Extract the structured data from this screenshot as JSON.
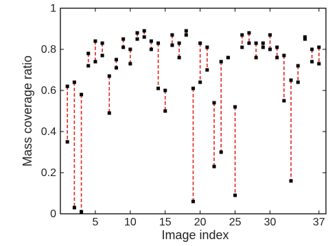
{
  "chart_data": {
    "type": "scatter",
    "title": "",
    "xlabel": "Image index",
    "ylabel": "Mass coverage ratio",
    "xlim": [
      0,
      38
    ],
    "ylim": [
      0,
      1
    ],
    "xticks": [
      5,
      10,
      15,
      20,
      25,
      30,
      37
    ],
    "yticks": [
      0,
      0.2,
      0.4,
      0.6,
      0.8,
      1
    ],
    "ytick_labels": [
      "0",
      "0.2",
      "0.4",
      "0.6",
      "0.8",
      "1"
    ],
    "grid": false,
    "legend": "none",
    "series": [
      {
        "style": "dashed range with square endpoint markers",
        "x": [
          1,
          2,
          3,
          4,
          5,
          6,
          7,
          8,
          9,
          10,
          11,
          12,
          13,
          14,
          15,
          16,
          17,
          18,
          19,
          20,
          21,
          22,
          23,
          24,
          25,
          26,
          27,
          28,
          29,
          30,
          31,
          32,
          33,
          34,
          35,
          36,
          37
        ],
        "low": [
          0.35,
          0.03,
          0.01,
          0.72,
          0.74,
          0.77,
          0.49,
          0.71,
          0.81,
          0.73,
          0.85,
          0.86,
          0.8,
          0.61,
          0.5,
          0.82,
          0.76,
          0.87,
          0.06,
          0.64,
          0.7,
          0.23,
          0.3,
          0.76,
          0.09,
          0.81,
          0.83,
          0.76,
          0.81,
          0.8,
          0.76,
          0.55,
          0.16,
          0.64,
          0.85,
          0.74,
          0.73
        ],
        "high": [
          0.62,
          0.64,
          0.58,
          0.78,
          0.84,
          0.83,
          0.67,
          0.75,
          0.85,
          0.8,
          0.88,
          0.89,
          0.84,
          0.83,
          0.6,
          0.87,
          0.83,
          0.89,
          0.61,
          0.83,
          0.81,
          0.54,
          0.74,
          0.76,
          0.52,
          0.87,
          0.88,
          0.83,
          0.83,
          0.87,
          0.81,
          0.77,
          0.65,
          0.72,
          0.86,
          0.8,
          0.81
        ]
      }
    ],
    "colors": {
      "range_line": "#e8201c",
      "marker": "#000000",
      "axis": "#000000",
      "text": "#222222"
    }
  }
}
